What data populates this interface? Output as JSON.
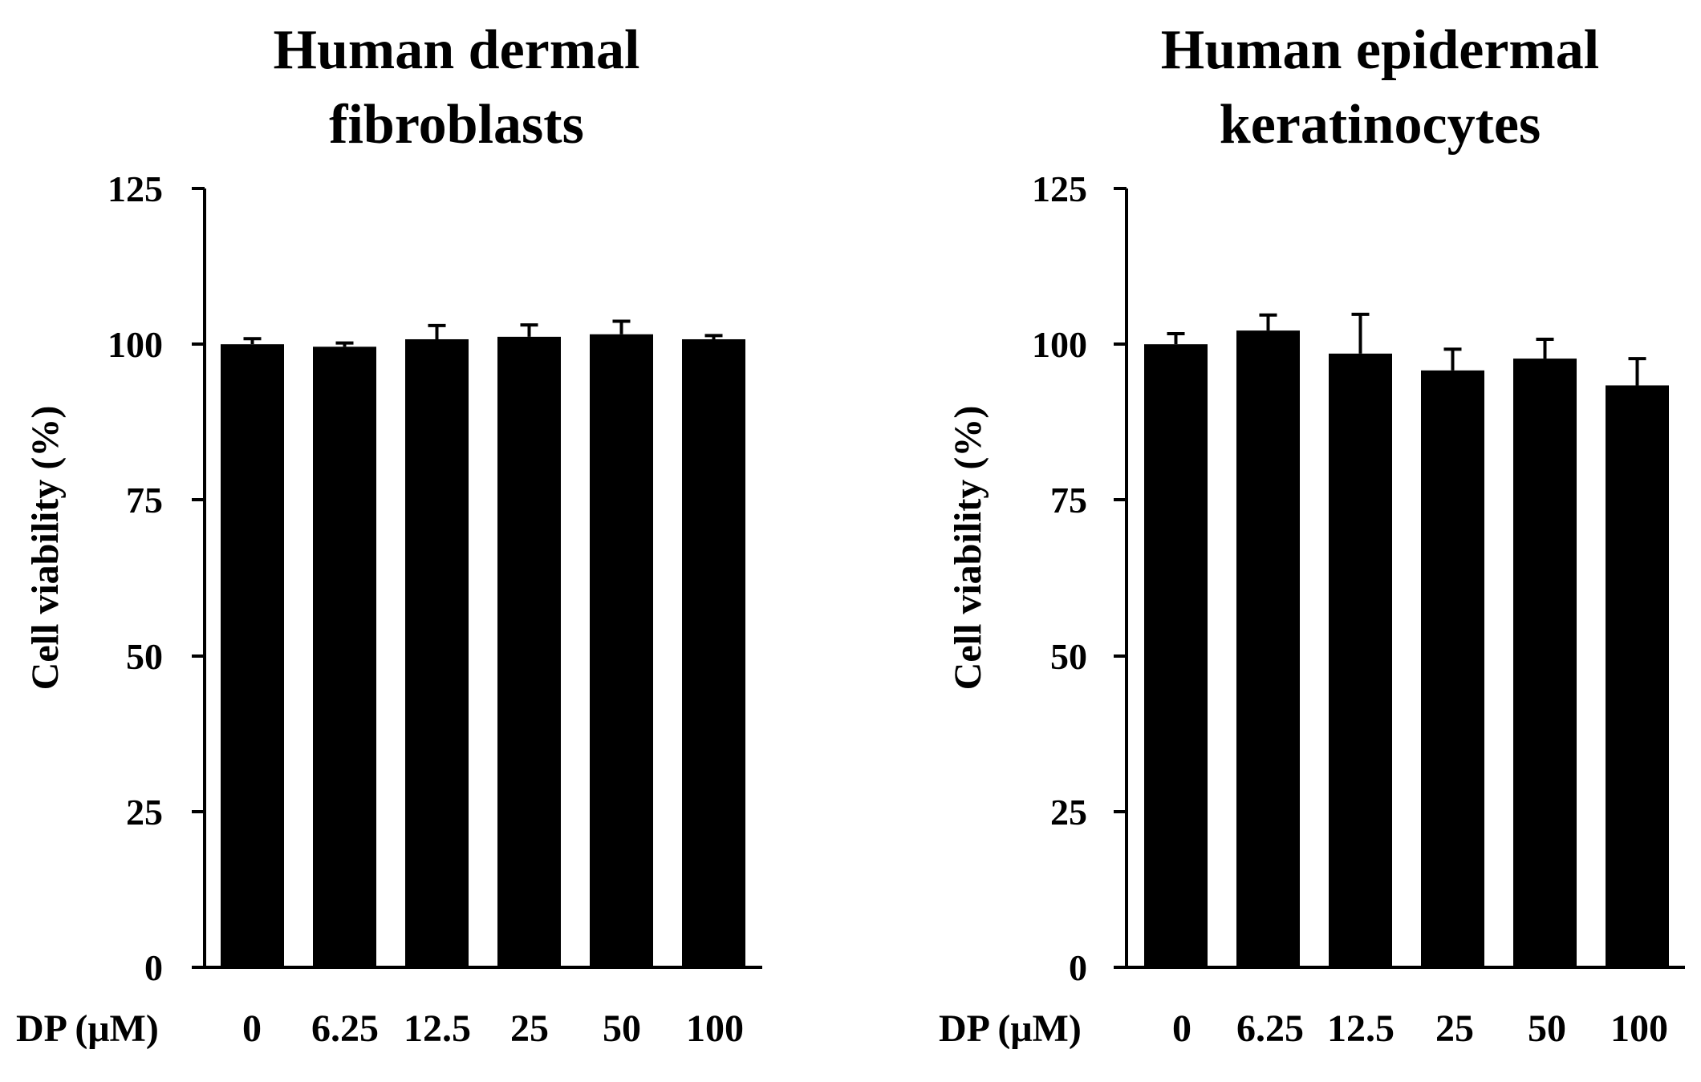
{
  "chart_data": [
    {
      "type": "bar",
      "title_lines": [
        "Human dermal",
        "fibroblasts"
      ],
      "ylabel": "Cell viability (%)",
      "xlabel": "DP (μM)",
      "categories": [
        "0",
        "6.25",
        "12.5",
        "25",
        "50",
        "100"
      ],
      "values": [
        100,
        99.6,
        100.8,
        101.2,
        101.6,
        100.8
      ],
      "error_upper": [
        0.9,
        0.6,
        2.2,
        1.9,
        2.1,
        0.6
      ],
      "ylim": [
        0,
        125
      ],
      "yticks": [
        "0",
        "25",
        "50",
        "75",
        "100",
        "125"
      ],
      "grid": false,
      "bar_color": "#000000"
    },
    {
      "type": "bar",
      "title_lines": [
        "Human epidermal",
        "keratinocytes"
      ],
      "ylabel": "Cell viability (%)",
      "xlabel": "DP (μM)",
      "categories": [
        "0",
        "6.25",
        "12.5",
        "25",
        "50",
        "100"
      ],
      "values": [
        100,
        102.2,
        98.5,
        95.8,
        97.7,
        93.4
      ],
      "error_upper": [
        1.7,
        2.5,
        6.3,
        3.4,
        3.1,
        4.3
      ],
      "ylim": [
        0,
        125
      ],
      "yticks": [
        "0",
        "25",
        "50",
        "75",
        "100",
        "125"
      ],
      "grid": false,
      "bar_color": "#000000"
    }
  ]
}
